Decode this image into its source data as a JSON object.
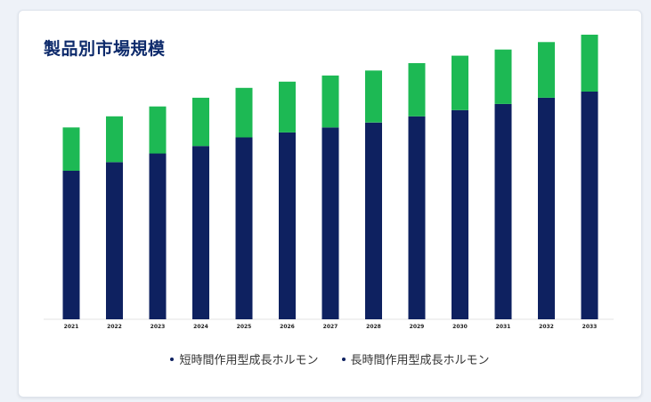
{
  "card": {
    "title": "製品別市場規模"
  },
  "chart_data": {
    "type": "bar",
    "stacked": true,
    "categories": [
      "2021",
      "2022",
      "2023",
      "2024",
      "2025",
      "2026",
      "2027",
      "2028",
      "2029",
      "2030",
      "2031",
      "2032",
      "2033"
    ],
    "series": [
      {
        "name": "短時間作用型成長ホルモン",
        "color": "#0e2160",
        "values": [
          120,
          127,
          134,
          140,
          147,
          151,
          155,
          159,
          164,
          169,
          174,
          179,
          184
        ]
      },
      {
        "name": "長時間作用型成長ホルモン",
        "color": "#1db954",
        "values": [
          35,
          37,
          38,
          39,
          40,
          41,
          42,
          42,
          43,
          44,
          44,
          45,
          46
        ]
      }
    ],
    "ylim": [
      0,
      235
    ],
    "grid": false,
    "legend_position": "bottom"
  }
}
